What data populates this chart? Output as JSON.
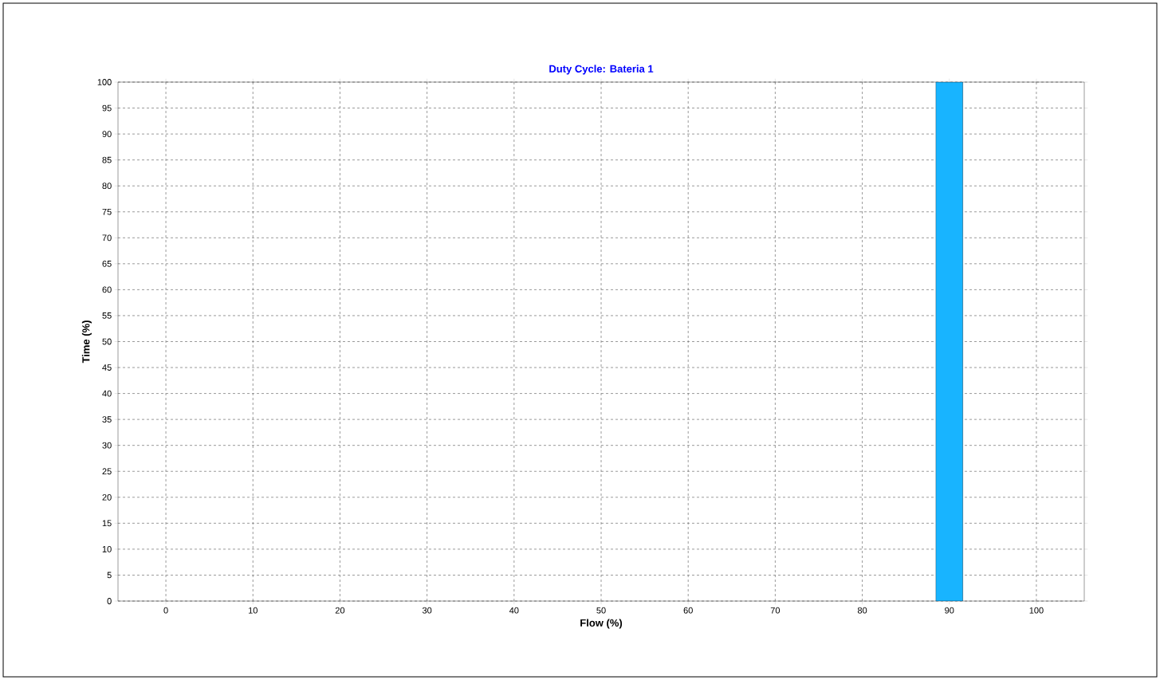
{
  "chart_data": {
    "type": "bar",
    "title": "Duty Cycle: Bateria 1",
    "xlabel": "Flow (%)",
    "ylabel": "Time (%)",
    "x": [
      90
    ],
    "values": [
      100
    ],
    "color": "#18b4ff",
    "xlim": [
      -5.5,
      105.5
    ],
    "xticks": [
      0,
      10,
      20,
      30,
      40,
      50,
      60,
      70,
      80,
      90,
      100
    ],
    "ylim": [
      0,
      100
    ],
    "yticks": [
      0,
      5,
      10,
      15,
      20,
      25,
      30,
      35,
      40,
      45,
      50,
      55,
      60,
      65,
      70,
      75,
      80,
      85,
      90,
      95,
      100
    ],
    "grid": true
  }
}
